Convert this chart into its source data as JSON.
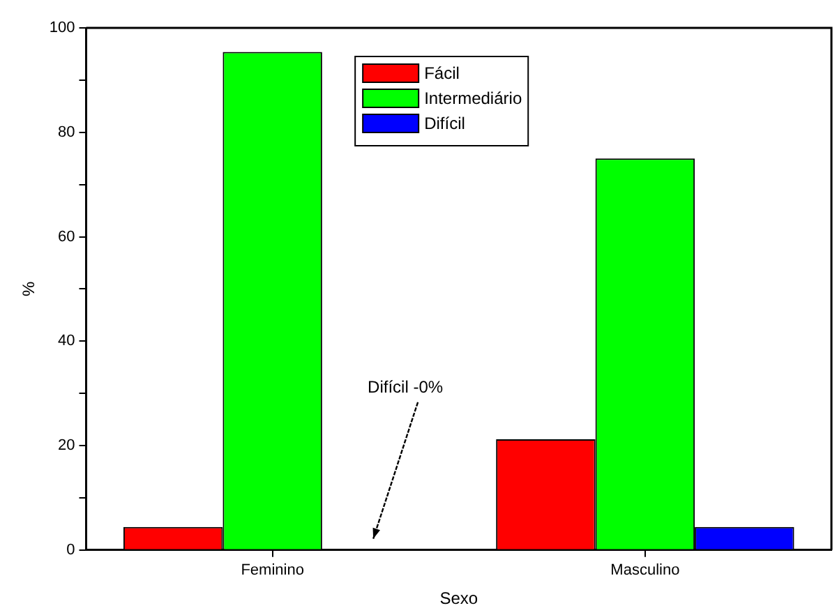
{
  "chart_data": {
    "type": "bar",
    "xlabel": "Sexo",
    "ylabel": "%",
    "categories": [
      "Feminino",
      "Masculino"
    ],
    "series": [
      {
        "name": "Fácil",
        "color": "#ff0000",
        "values": [
          4.4,
          21.2
        ]
      },
      {
        "name": "Intermediário",
        "color": "#00ff00",
        "values": [
          95.4,
          75
        ]
      },
      {
        "name": "Difícil",
        "color": "#0000ff",
        "values": [
          0,
          4.4
        ]
      }
    ],
    "ylim": [
      0,
      100
    ],
    "yticks": [
      0,
      {
        "value": 10,
        "label": null
      },
      20,
      {
        "value": 30,
        "label": null
      },
      40,
      {
        "value": 50,
        "label": null
      },
      60,
      {
        "value": 70,
        "label": null
      },
      80,
      {
        "value": 90,
        "label": null
      },
      100
    ],
    "grid": false,
    "legend": "top",
    "annotations": [
      "Difícil -0%"
    ]
  }
}
